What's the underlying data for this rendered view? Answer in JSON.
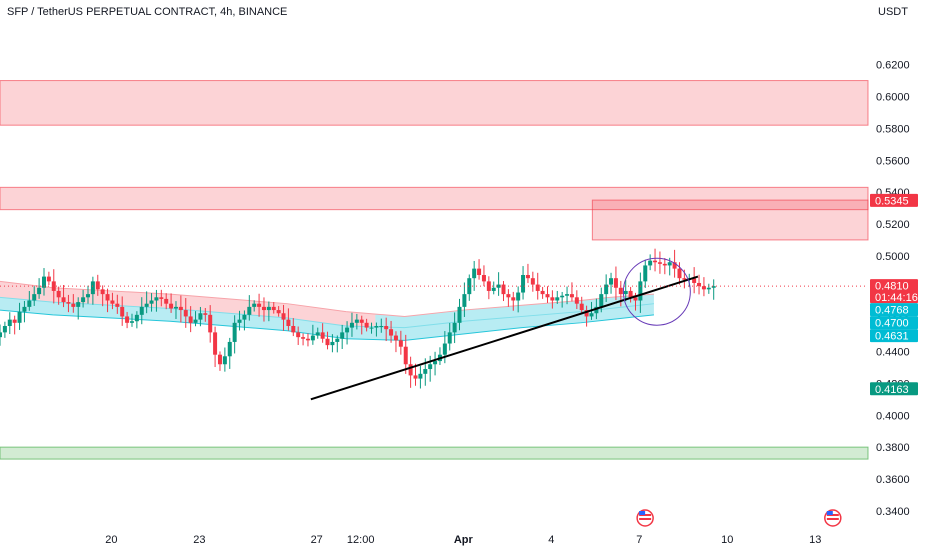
{
  "header": {
    "title": "SFP / TetherUS PERPETUAL CONTRACT, 4h, BINANCE",
    "currency": "USDT"
  },
  "chart_data": {
    "type": "candlestick",
    "y_axis": {
      "ticks": [
        "0.3400",
        "0.3600",
        "0.3800",
        "0.4000",
        "0.4200",
        "0.4400",
        "0.4600",
        "0.4800",
        "0.5000",
        "0.5200",
        "0.5400",
        "0.5600",
        "0.5800",
        "0.6000",
        "0.6200"
      ],
      "tick_values": [
        0.34,
        0.36,
        0.38,
        0.4,
        0.42,
        0.44,
        0.46,
        0.48,
        0.5,
        0.52,
        0.54,
        0.56,
        0.58,
        0.6,
        0.62
      ],
      "range": [
        0.328,
        0.648
      ]
    },
    "x_axis": {
      "ticks": [
        "20",
        "23",
        "27",
        "12:00",
        "Apr",
        "4",
        "7",
        "10",
        "13"
      ],
      "tick_days": [
        20,
        23,
        27,
        28.5,
        32,
        35,
        38,
        41,
        44
      ],
      "range": [
        16.2,
        45.8
      ]
    },
    "zones": [
      {
        "kind": "resistance",
        "y_from": 0.582,
        "y_to": 0.61,
        "x_from": 16.2,
        "x_to": 45.8
      },
      {
        "kind": "resistance",
        "y_from": 0.529,
        "y_to": 0.543,
        "x_from": 16.2,
        "x_to": 45.8
      },
      {
        "kind": "resistance",
        "y_from": 0.51,
        "y_to": 0.535,
        "x_from": 36.4,
        "x_to": 45.8
      },
      {
        "kind": "support",
        "y_from": 0.3725,
        "y_to": 0.38,
        "x_from": 16.2,
        "x_to": 45.8
      }
    ],
    "trendline": {
      "points": [
        [
          26.8,
          0.41
        ],
        [
          40.0,
          0.487
        ]
      ]
    },
    "annotation": {
      "shape": "circle",
      "center": [
        38.6,
        0.4775
      ],
      "radius_price": 0.021
    },
    "price_tags": [
      {
        "value": "0.5345",
        "y": 0.5345,
        "color": "#f23645"
      },
      {
        "value": "0.4810",
        "y": 0.481,
        "color": "#f23645",
        "timer": "01:44:16"
      },
      {
        "value": "0.4768",
        "y": 0.4753,
        "color": "#00bcd4"
      },
      {
        "value": "0.4700",
        "y": 0.47,
        "color": "#00bcd4"
      },
      {
        "value": "0.4631",
        "y": 0.4631,
        "color": "#00bcd4"
      },
      {
        "value": "0.4163",
        "y": 0.4163,
        "color": "#089981"
      }
    ],
    "last_price": 0.481,
    "bands": {
      "days": [
        16.2,
        18,
        20,
        22,
        24,
        26,
        28,
        30,
        32,
        34,
        36,
        37,
        38.5
      ],
      "outer_top": [
        0.484,
        0.48,
        0.478,
        0.476,
        0.473,
        0.47,
        0.465,
        0.462,
        0.466,
        0.469,
        0.472,
        0.474,
        0.476
      ],
      "mid": [
        0.474,
        0.471,
        0.469,
        0.467,
        0.464,
        0.461,
        0.456,
        0.455,
        0.459,
        0.462,
        0.465,
        0.467,
        0.47
      ],
      "outer_bottom": [
        0.466,
        0.463,
        0.461,
        0.459,
        0.456,
        0.453,
        0.448,
        0.447,
        0.451,
        0.455,
        0.458,
        0.46,
        0.463
      ],
      "red_until_day": 29.0
    },
    "candles_anchor": {
      "start_day": 16.2,
      "step_days": 0.1667,
      "path": [
        0.452,
        0.456,
        0.46,
        0.458,
        0.465,
        0.468,
        0.472,
        0.476,
        0.48,
        0.487,
        0.484,
        0.478,
        0.474,
        0.471,
        0.47,
        0.468,
        0.471,
        0.474,
        0.476,
        0.484,
        0.479,
        0.476,
        0.472,
        0.47,
        0.468,
        0.462,
        0.458,
        0.459,
        0.463,
        0.468,
        0.47,
        0.472,
        0.474,
        0.473,
        0.47,
        0.467,
        0.468,
        0.466,
        0.462,
        0.458,
        0.46,
        0.464,
        0.463,
        0.452,
        0.438,
        0.432,
        0.437,
        0.446,
        0.458,
        0.46,
        0.463,
        0.468,
        0.47,
        0.468,
        0.466,
        0.468,
        0.466,
        0.464,
        0.46,
        0.456,
        0.452,
        0.449,
        0.448,
        0.447,
        0.45,
        0.452,
        0.448,
        0.444,
        0.446,
        0.448,
        0.452,
        0.455,
        0.458,
        0.46,
        0.458,
        0.455,
        0.455,
        0.456,
        0.456,
        0.454,
        0.45,
        0.447,
        0.443,
        0.432,
        0.425,
        0.423,
        0.426,
        0.429,
        0.432,
        0.434,
        0.438,
        0.445,
        0.452,
        0.458,
        0.468,
        0.476,
        0.486,
        0.492,
        0.488,
        0.484,
        0.478,
        0.48,
        0.482,
        0.476,
        0.474,
        0.472,
        0.477,
        0.488,
        0.486,
        0.482,
        0.478,
        0.476,
        0.474,
        0.472,
        0.474,
        0.475,
        0.476,
        0.474,
        0.47,
        0.466,
        0.462,
        0.464,
        0.468,
        0.476,
        0.482,
        0.486,
        0.48,
        0.476,
        0.478,
        0.474,
        0.472,
        0.484,
        0.494,
        0.497,
        0.496,
        0.495,
        0.494,
        0.496,
        0.492,
        0.486,
        0.485,
        0.486,
        0.483,
        0.481,
        0.479,
        0.48,
        0.481
      ]
    }
  }
}
